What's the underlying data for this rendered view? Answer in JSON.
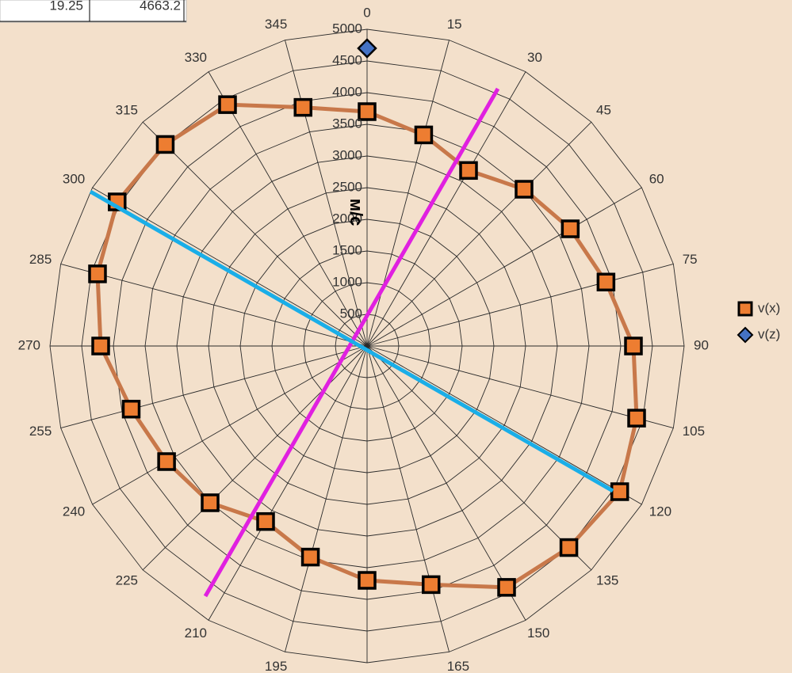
{
  "sheet_cells": [
    "19.25",
    "4663.2"
  ],
  "chart_data": {
    "type": "radar",
    "y_label": "м/с",
    "categories": [
      "0",
      "15",
      "30",
      "45",
      "60",
      "75",
      "90",
      "105",
      "120",
      "135",
      "150",
      "165",
      "180",
      "195",
      "210",
      "225",
      "240",
      "255",
      "270",
      "285",
      "300",
      "315",
      "330",
      "345"
    ],
    "series": [
      {
        "name": "v(x)",
        "color": "#ed7d31",
        "line_color": "#c8784a",
        "marker": "square",
        "values": [
          3700,
          3450,
          3200,
          3500,
          3700,
          3900,
          4200,
          4400,
          4600,
          4500,
          4400,
          3900,
          3700,
          3450,
          3200,
          3500,
          3650,
          3850,
          4200,
          4400,
          4550,
          4500,
          4400,
          3900
        ]
      },
      {
        "name": "v(z)",
        "color": "#4472c4",
        "line_color": "#4472c4",
        "marker": "diamond",
        "values": [
          4700,
          null,
          null,
          null,
          null,
          null,
          null,
          null,
          null,
          null,
          null,
          null,
          null,
          null,
          null,
          null,
          null,
          null,
          null,
          null,
          null,
          null,
          null,
          null
        ]
      }
    ],
    "ylim": [
      0,
      5000
    ],
    "yticks": [
      500,
      1000,
      1500,
      2000,
      2500,
      3000,
      3500,
      4000,
      4500,
      5000
    ],
    "grid": true,
    "legend": "right"
  }
}
